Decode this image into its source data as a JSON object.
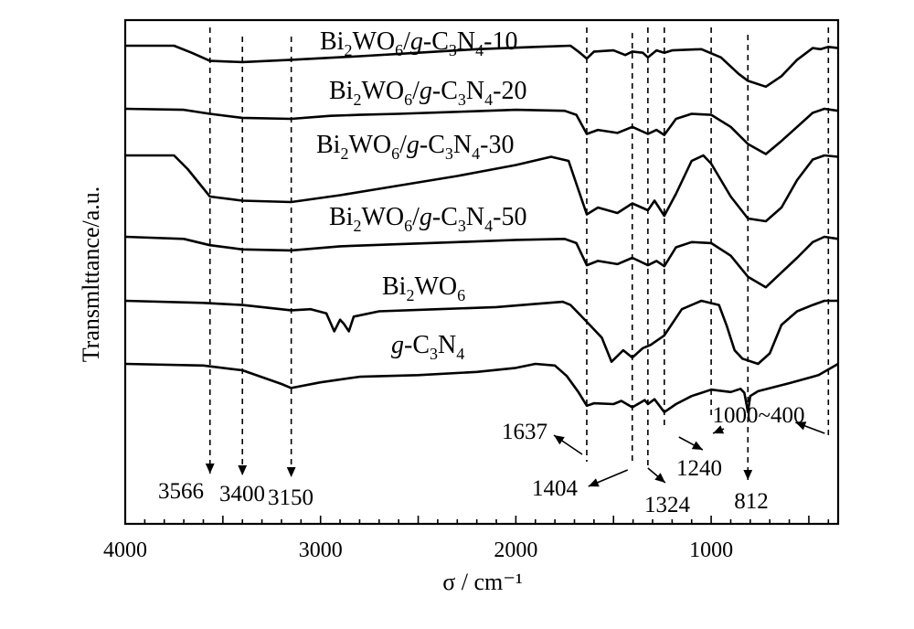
{
  "chart_data": {
    "type": "line",
    "xlabel": "σ / cm⁻¹",
    "ylabel": "Transmlttance/a.u.",
    "xlim": [
      4000,
      350
    ],
    "x_ticks": [
      4000,
      3000,
      2000,
      1000
    ],
    "grid": false,
    "legend": "labels next to curves",
    "series": [
      {
        "name": "Bi₂WO₆/g-C₃N₄-10",
        "name_parts": [
          "Bi",
          "2",
          "WO",
          "6",
          "/",
          "g",
          "-C",
          "3",
          "N",
          "4",
          "-10"
        ],
        "points": [
          [
            4000,
            0.0
          ],
          [
            3750,
            0.0
          ],
          [
            3660,
            0.06
          ],
          [
            3566,
            0.13
          ],
          [
            3400,
            0.14
          ],
          [
            3150,
            0.12
          ],
          [
            2800,
            0.09
          ],
          [
            2500,
            0.06
          ],
          [
            2200,
            0.03
          ],
          [
            1900,
            0.01
          ],
          [
            1720,
            0.0
          ],
          [
            1680,
            0.05
          ],
          [
            1637,
            0.11
          ],
          [
            1600,
            0.05
          ],
          [
            1500,
            0.04
          ],
          [
            1440,
            0.08
          ],
          [
            1404,
            0.05
          ],
          [
            1350,
            0.06
          ],
          [
            1324,
            0.1
          ],
          [
            1280,
            0.04
          ],
          [
            1240,
            0.06
          ],
          [
            1200,
            0.04
          ],
          [
            1050,
            0.03
          ],
          [
            950,
            0.1
          ],
          [
            860,
            0.24
          ],
          [
            812,
            0.3
          ],
          [
            720,
            0.35
          ],
          [
            640,
            0.26
          ],
          [
            560,
            0.12
          ],
          [
            480,
            0.02
          ],
          [
            440,
            0.03
          ],
          [
            400,
            0.01
          ],
          [
            350,
            0.02
          ]
        ]
      },
      {
        "name": "Bi₂WO₆/g-C₃N₄-20",
        "name_parts": [
          "Bi",
          "2",
          "WO",
          "6",
          "/",
          "g",
          "-C",
          "3",
          "N",
          "4",
          "-20"
        ],
        "points": [
          [
            4000,
            0.0
          ],
          [
            3700,
            0.01
          ],
          [
            3566,
            0.05
          ],
          [
            3400,
            0.09
          ],
          [
            3150,
            0.1
          ],
          [
            2950,
            0.07
          ],
          [
            2800,
            0.06
          ],
          [
            2600,
            0.05
          ],
          [
            2300,
            0.03
          ],
          [
            2000,
            0.01
          ],
          [
            1750,
            0.02
          ],
          [
            1690,
            0.06
          ],
          [
            1637,
            0.25
          ],
          [
            1580,
            0.21
          ],
          [
            1480,
            0.24
          ],
          [
            1404,
            0.18
          ],
          [
            1324,
            0.25
          ],
          [
            1280,
            0.21
          ],
          [
            1240,
            0.26
          ],
          [
            1180,
            0.1
          ],
          [
            1100,
            0.05
          ],
          [
            1000,
            0.06
          ],
          [
            900,
            0.18
          ],
          [
            812,
            0.35
          ],
          [
            720,
            0.45
          ],
          [
            640,
            0.32
          ],
          [
            560,
            0.18
          ],
          [
            480,
            0.04
          ],
          [
            420,
            0.0
          ],
          [
            350,
            0.02
          ]
        ]
      },
      {
        "name": "Bi₂WO₆/g-C₃N₄-30",
        "name_parts": [
          "Bi",
          "2",
          "WO",
          "6",
          "/",
          "g",
          "-C",
          "3",
          "N",
          "4",
          "-30"
        ],
        "points": [
          [
            4000,
            0.0
          ],
          [
            3750,
            0.0
          ],
          [
            3680,
            0.1
          ],
          [
            3566,
            0.3
          ],
          [
            3400,
            0.33
          ],
          [
            3150,
            0.34
          ],
          [
            2900,
            0.29
          ],
          [
            2600,
            0.22
          ],
          [
            2300,
            0.15
          ],
          [
            2000,
            0.07
          ],
          [
            1820,
            0.01
          ],
          [
            1730,
            0.04
          ],
          [
            1680,
            0.25
          ],
          [
            1637,
            0.43
          ],
          [
            1580,
            0.38
          ],
          [
            1480,
            0.42
          ],
          [
            1404,
            0.35
          ],
          [
            1324,
            0.4
          ],
          [
            1290,
            0.33
          ],
          [
            1240,
            0.44
          ],
          [
            1180,
            0.28
          ],
          [
            1100,
            0.04
          ],
          [
            1040,
            0.0
          ],
          [
            1000,
            0.06
          ],
          [
            900,
            0.3
          ],
          [
            812,
            0.46
          ],
          [
            720,
            0.48
          ],
          [
            640,
            0.38
          ],
          [
            560,
            0.18
          ],
          [
            480,
            0.03
          ],
          [
            420,
            0.0
          ],
          [
            350,
            0.01
          ]
        ]
      },
      {
        "name": "Bi₂WO₆/g-C₃N₄-50",
        "name_parts": [
          "Bi",
          "2",
          "WO",
          "6",
          "/",
          "g",
          "-C",
          "3",
          "N",
          "4",
          "-50"
        ],
        "points": [
          [
            4000,
            0.0
          ],
          [
            3700,
            0.02
          ],
          [
            3566,
            0.08
          ],
          [
            3400,
            0.12
          ],
          [
            3150,
            0.13
          ],
          [
            2900,
            0.09
          ],
          [
            2600,
            0.07
          ],
          [
            2300,
            0.05
          ],
          [
            2000,
            0.03
          ],
          [
            1750,
            0.02
          ],
          [
            1690,
            0.06
          ],
          [
            1637,
            0.27
          ],
          [
            1580,
            0.23
          ],
          [
            1480,
            0.26
          ],
          [
            1404,
            0.2
          ],
          [
            1324,
            0.27
          ],
          [
            1280,
            0.23
          ],
          [
            1240,
            0.28
          ],
          [
            1180,
            0.1
          ],
          [
            1100,
            0.05
          ],
          [
            1000,
            0.06
          ],
          [
            900,
            0.18
          ],
          [
            812,
            0.38
          ],
          [
            720,
            0.48
          ],
          [
            640,
            0.34
          ],
          [
            560,
            0.2
          ],
          [
            480,
            0.05
          ],
          [
            420,
            0.0
          ],
          [
            350,
            0.02
          ]
        ]
      },
      {
        "name": "Bi₂WO₆",
        "name_parts": [
          "Bi",
          "2",
          "WO",
          "6"
        ],
        "points": [
          [
            4000,
            0.0
          ],
          [
            3600,
            0.02
          ],
          [
            3400,
            0.04
          ],
          [
            3150,
            0.09
          ],
          [
            3050,
            0.08
          ],
          [
            2970,
            0.12
          ],
          [
            2930,
            0.29
          ],
          [
            2900,
            0.18
          ],
          [
            2880,
            0.22
          ],
          [
            2855,
            0.29
          ],
          [
            2830,
            0.15
          ],
          [
            2700,
            0.1
          ],
          [
            2400,
            0.08
          ],
          [
            2100,
            0.06
          ],
          [
            1900,
            0.03
          ],
          [
            1760,
            0.01
          ],
          [
            1720,
            0.04
          ],
          [
            1637,
            0.2
          ],
          [
            1560,
            0.35
          ],
          [
            1510,
            0.58
          ],
          [
            1450,
            0.47
          ],
          [
            1404,
            0.54
          ],
          [
            1350,
            0.45
          ],
          [
            1310,
            0.42
          ],
          [
            1240,
            0.33
          ],
          [
            1150,
            0.08
          ],
          [
            1050,
            0.0
          ],
          [
            960,
            0.04
          ],
          [
            920,
            0.24
          ],
          [
            880,
            0.47
          ],
          [
            840,
            0.55
          ],
          [
            760,
            0.6
          ],
          [
            700,
            0.5
          ],
          [
            640,
            0.23
          ],
          [
            560,
            0.1
          ],
          [
            480,
            0.04
          ],
          [
            420,
            0.0
          ],
          [
            350,
            0.0
          ]
        ]
      },
      {
        "name": "g-C₃N₄",
        "name_parts": [
          "g",
          "-C",
          "3",
          "N",
          "4"
        ],
        "points": [
          [
            4000,
            0.0
          ],
          [
            3600,
            0.02
          ],
          [
            3400,
            0.08
          ],
          [
            3200,
            0.25
          ],
          [
            3150,
            0.3
          ],
          [
            3000,
            0.23
          ],
          [
            2800,
            0.16
          ],
          [
            2500,
            0.14
          ],
          [
            2200,
            0.1
          ],
          [
            2000,
            0.05
          ],
          [
            1900,
            0.0
          ],
          [
            1800,
            0.02
          ],
          [
            1740,
            0.15
          ],
          [
            1680,
            0.35
          ],
          [
            1637,
            0.52
          ],
          [
            1600,
            0.49
          ],
          [
            1500,
            0.5
          ],
          [
            1460,
            0.46
          ],
          [
            1404,
            0.54
          ],
          [
            1340,
            0.45
          ],
          [
            1324,
            0.5
          ],
          [
            1290,
            0.44
          ],
          [
            1240,
            0.6
          ],
          [
            1180,
            0.5
          ],
          [
            1100,
            0.4
          ],
          [
            1000,
            0.32
          ],
          [
            900,
            0.35
          ],
          [
            850,
            0.31
          ],
          [
            830,
            0.36
          ],
          [
            812,
            0.6
          ],
          [
            800,
            0.4
          ],
          [
            760,
            0.34
          ],
          [
            600,
            0.24
          ],
          [
            450,
            0.14
          ],
          [
            350,
            0.0
          ]
        ]
      }
    ],
    "reference_lines": [
      3566,
      3400,
      3150,
      1637,
      1404,
      1324,
      1240,
      1000,
      812,
      400
    ],
    "annotations": [
      "3566",
      "3400",
      "3150",
      "1637",
      "1404",
      "1324",
      "1240",
      "1000~400",
      "812"
    ]
  }
}
